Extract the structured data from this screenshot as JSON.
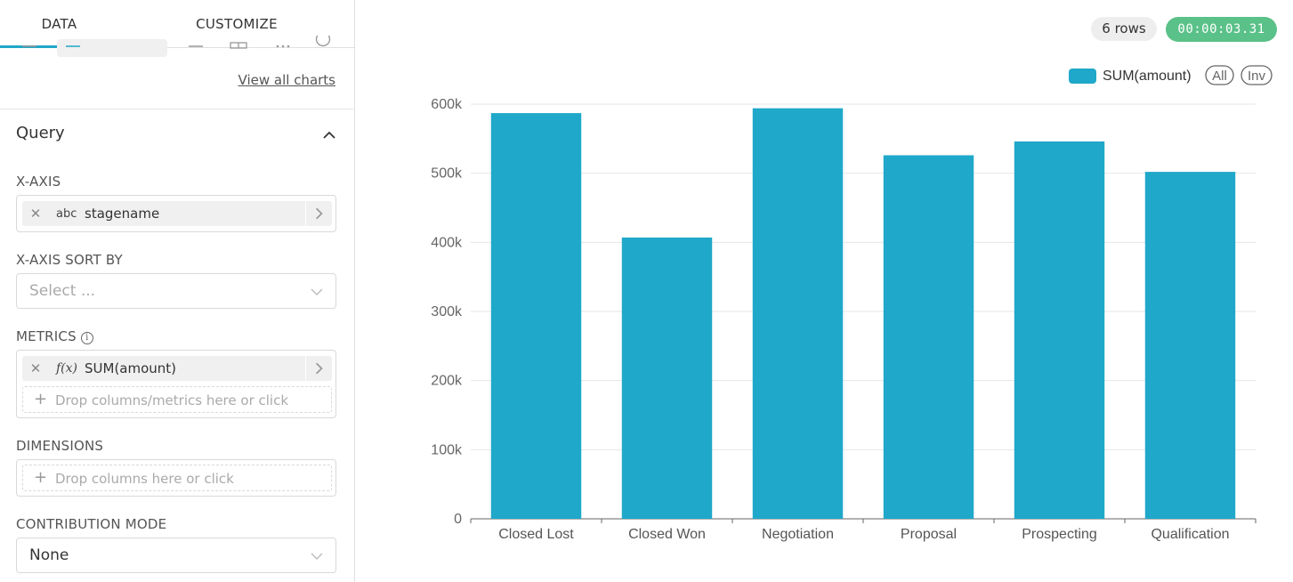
{
  "tabs": {
    "data": "DATA",
    "customize": "CUSTOMIZE"
  },
  "view_all_charts": "View all charts",
  "query": {
    "title": "Query",
    "x_axis": {
      "label": "X-AXIS",
      "type": "abc",
      "column": "stagename"
    },
    "x_axis_sort_by": {
      "label": "X-AXIS SORT BY",
      "placeholder": "Select ..."
    },
    "metrics": {
      "label": "METRICS",
      "type": "f(x)",
      "metric": "SUM(amount)",
      "drop_hint": "Drop columns/metrics here or click"
    },
    "dimensions": {
      "label": "DIMENSIONS",
      "drop_hint": "Drop columns here or click"
    },
    "contribution_mode": {
      "label": "CONTRIBUTION MODE",
      "value": "None"
    }
  },
  "status": {
    "rows": "6 rows",
    "timer": "00:00:03.31",
    "timer_color": "#5ac189"
  },
  "legend_buttons": {
    "all": "All",
    "inv": "Inv"
  },
  "chart_data": {
    "type": "bar",
    "categories": [
      "Closed Lost",
      "Closed Won",
      "Negotiation",
      "Proposal",
      "Prospecting",
      "Qualification"
    ],
    "series": [
      {
        "name": "SUM(amount)",
        "color": "#1fa8c9",
        "values": [
          587000,
          407000,
          594000,
          526000,
          546000,
          502000
        ]
      }
    ],
    "ylim": [
      0,
      600000
    ],
    "y_ticks": [
      {
        "value": 0,
        "label": "0"
      },
      {
        "value": 100000,
        "label": "100k"
      },
      {
        "value": 200000,
        "label": "200k"
      },
      {
        "value": 300000,
        "label": "300k"
      },
      {
        "value": 400000,
        "label": "400k"
      },
      {
        "value": 500000,
        "label": "500k"
      },
      {
        "value": 600000,
        "label": "600k"
      }
    ],
    "grid": true,
    "legend_position": "top-right",
    "xlabel": "",
    "ylabel": "",
    "title": ""
  }
}
